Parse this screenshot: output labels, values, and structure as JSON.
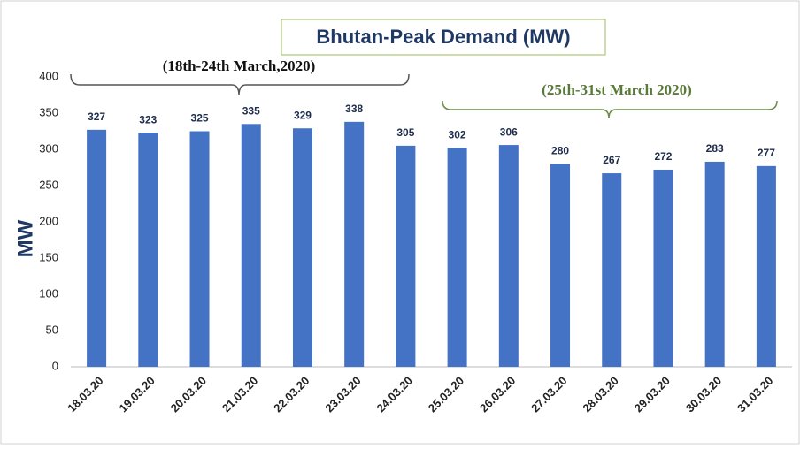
{
  "chart_data": {
    "type": "bar",
    "title": "Bhutan-Peak Demand (MW)",
    "y_label": "MW",
    "categories": [
      "18.03.20",
      "19.03.20",
      "20.03.20",
      "21.03.20",
      "22.03.20",
      "23.03.20",
      "24.03.20",
      "25.03.20",
      "26.03.20",
      "27.03.20",
      "28.03.20",
      "29.03.20",
      "30.03.20",
      "31.03.20"
    ],
    "values": [
      327,
      323,
      325,
      335,
      329,
      338,
      305,
      302,
      306,
      280,
      267,
      272,
      283,
      277
    ],
    "color": "#4472c4",
    "ylim": [
      0,
      400
    ],
    "yticks": [
      0,
      50,
      100,
      150,
      200,
      250,
      300,
      350,
      400
    ],
    "grid": false,
    "annotations": [
      "(18th-24th March,2020)",
      "(25th-31st March 2020)"
    ]
  }
}
